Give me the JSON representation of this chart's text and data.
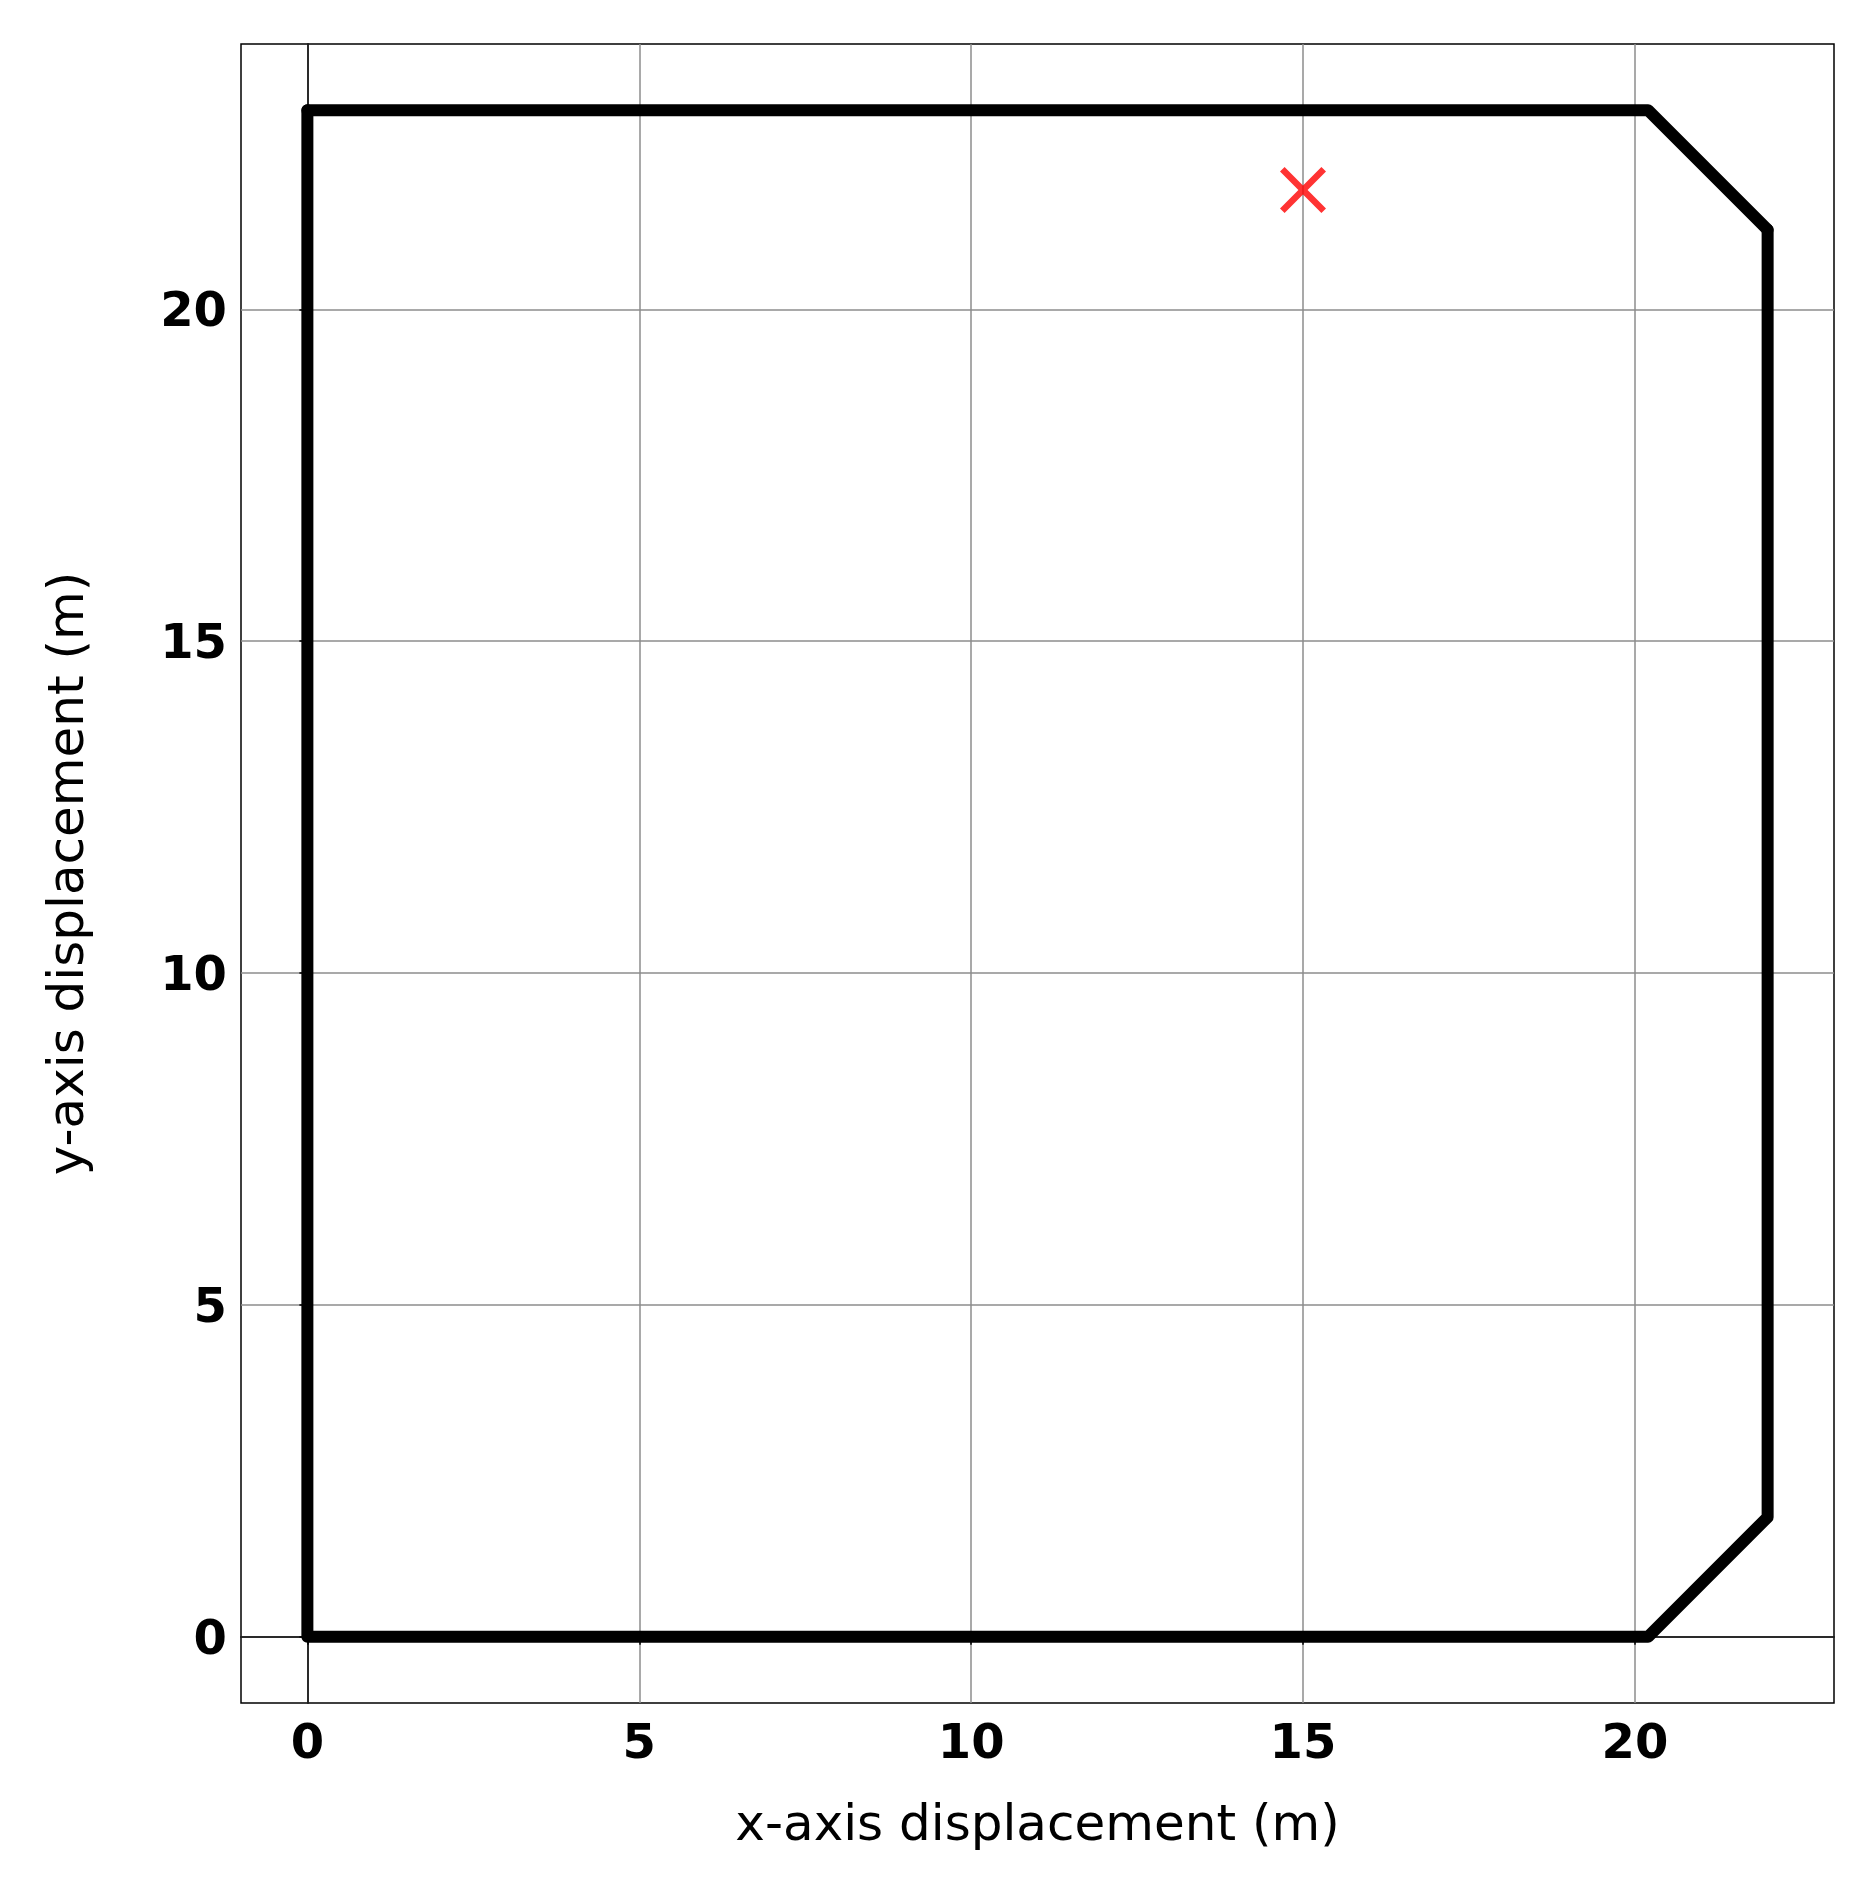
{
  "chart_data": {
    "type": "line",
    "xlabel": "x-axis displacement (m)",
    "ylabel": "y-axis displacement (m)",
    "xlim": [
      -1,
      23
    ],
    "ylim": [
      -1,
      24
    ],
    "xticks": [
      0,
      5,
      10,
      15,
      20
    ],
    "yticks": [
      0,
      5,
      10,
      15,
      20
    ],
    "grid": true,
    "series": [
      {
        "color": "#000000",
        "line_style": "solid",
        "marker": "none",
        "x": [
          0,
          0,
          20.2,
          22.0,
          22.0
        ],
        "values": [
          23.0,
          0,
          0,
          1.8,
          21.2
        ]
      },
      {
        "color": "#000000",
        "line_style": "solid",
        "marker": "none",
        "x": [
          0,
          20.2,
          22.0
        ],
        "values": [
          23.0,
          23.0,
          21.2
        ]
      },
      {
        "type": "scatter",
        "color": "#ff0000",
        "marker": "cross",
        "x": [
          15.0
        ],
        "values": [
          21.8
        ]
      }
    ]
  }
}
